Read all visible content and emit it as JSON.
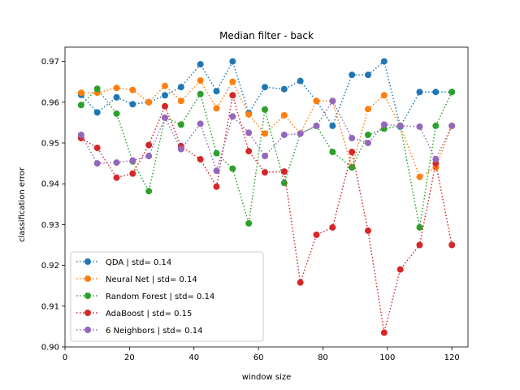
{
  "chart_data": {
    "type": "line",
    "title": "Median filter - back",
    "xlabel": "window size",
    "ylabel": "classification error",
    "xlim": [
      0,
      125
    ],
    "ylim": [
      0.9,
      0.9735
    ],
    "xticks": [
      0,
      20,
      40,
      60,
      80,
      100,
      120
    ],
    "xtick_labels": [
      "0",
      "20",
      "40",
      "60",
      "80",
      "100",
      "120"
    ],
    "yticks": [
      0.9,
      0.91,
      0.92,
      0.93,
      0.94,
      0.95,
      0.96,
      0.97
    ],
    "ytick_labels": [
      "0.90",
      "0.91",
      "0.92",
      "0.93",
      "0.94",
      "0.95",
      "0.96",
      "0.97"
    ],
    "grid": false,
    "legend_position": "lower-left",
    "x": [
      5,
      10,
      16,
      21,
      26,
      31,
      36,
      42,
      47,
      52,
      57,
      62,
      68,
      73,
      78,
      83,
      89,
      94,
      99,
      104,
      110,
      115,
      120
    ],
    "series": [
      {
        "name": "QDA | std= 0.14",
        "color": "#1f77b4",
        "values": [
          0.9618,
          0.9575,
          0.9612,
          0.9595,
          0.96,
          0.9617,
          0.9637,
          0.9693,
          0.9627,
          0.97,
          0.9573,
          0.9637,
          0.9632,
          0.9652,
          0.9603,
          0.9542,
          0.9667,
          0.9667,
          0.97,
          0.954,
          0.9625,
          0.9625,
          0.9625
        ]
      },
      {
        "name": "Neural Net | std= 0.14",
        "color": "#ff7f0e",
        "values": [
          0.9623,
          0.9623,
          0.9635,
          0.963,
          0.96,
          0.964,
          0.9603,
          0.9653,
          0.9585,
          0.965,
          0.957,
          0.9523,
          0.9568,
          0.9523,
          0.9603,
          0.9603,
          0.944,
          0.9583,
          0.9617,
          0.9542,
          0.9417,
          0.944,
          0.9542
        ]
      },
      {
        "name": "Random Forest | std= 0.14",
        "color": "#2ca02c",
        "values": [
          0.9593,
          0.9633,
          0.9572,
          0.9455,
          0.9382,
          0.9562,
          0.9545,
          0.962,
          0.9475,
          0.9437,
          0.9303,
          0.9582,
          0.9402,
          0.9523,
          0.9542,
          0.9478,
          0.944,
          0.952,
          0.9535,
          0.9542,
          0.9293,
          0.9542,
          0.9625
        ]
      },
      {
        "name": "AdaBoost | std= 0.15",
        "color": "#d62728",
        "values": [
          0.9512,
          0.9488,
          0.9415,
          0.9425,
          0.9495,
          0.959,
          0.9492,
          0.946,
          0.9393,
          0.9617,
          0.948,
          0.9428,
          0.943,
          0.9158,
          0.9275,
          0.9293,
          0.9478,
          0.9285,
          0.9035,
          0.919,
          0.925,
          0.945,
          0.925
        ]
      },
      {
        "name": "6 Neighbors | std= 0.14",
        "color": "#9467bd",
        "values": [
          0.952,
          0.945,
          0.9452,
          0.9457,
          0.9468,
          0.9562,
          0.9485,
          0.9547,
          0.9432,
          0.9565,
          0.9525,
          0.9468,
          0.952,
          0.9523,
          0.9542,
          0.9603,
          0.9512,
          0.95,
          0.9545,
          0.9542,
          0.954,
          0.946,
          0.9542
        ]
      }
    ]
  }
}
